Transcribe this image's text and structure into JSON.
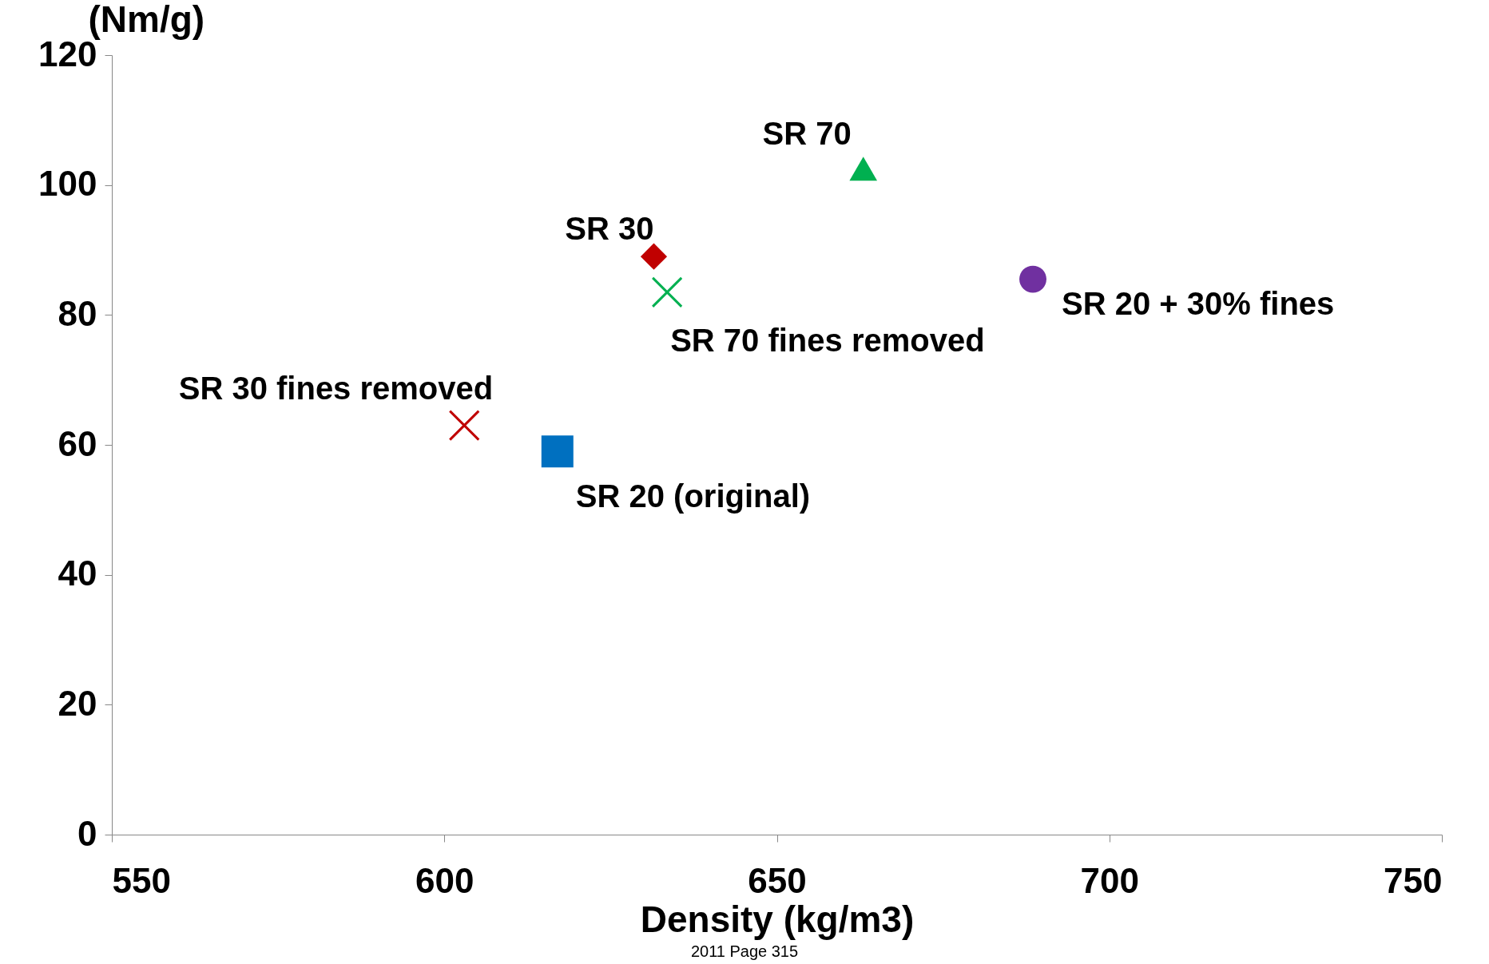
{
  "chart_data": {
    "type": "scatter",
    "xlabel": "Density (kg/m3)",
    "ylabel": "(Nm/g)",
    "xlim": [
      550,
      750
    ],
    "xticks": [
      550,
      600,
      650,
      700,
      750
    ],
    "ylim": [
      0,
      120
    ],
    "yticks": [
      0,
      20,
      40,
      60,
      80,
      100,
      120
    ],
    "grid": false,
    "series": [
      {
        "name": "SR 20 (original)",
        "color": "#0070c0",
        "marker": "square",
        "x": [
          617
        ],
        "values": [
          59
        ]
      },
      {
        "name": "SR 30 fines removed",
        "color": "#c00000",
        "marker": "cross",
        "x": [
          603
        ],
        "values": [
          63
        ]
      },
      {
        "name": "SR 30",
        "color": "#c00000",
        "marker": "diamond",
        "x": [
          631.5
        ],
        "values": [
          89
        ]
      },
      {
        "name": "SR 70 fines removed",
        "color": "#00b050",
        "marker": "cross",
        "x": [
          633.5
        ],
        "values": [
          83.5
        ]
      },
      {
        "name": "SR 70",
        "color": "#00b050",
        "marker": "triangle",
        "x": [
          663
        ],
        "values": [
          102.5
        ]
      },
      {
        "name": "SR 20 + 30% fines",
        "color": "#7030a0",
        "marker": "circle",
        "x": [
          688.5
        ],
        "values": [
          85.5
        ]
      }
    ],
    "annotations": [
      "2011 Page 315"
    ]
  }
}
